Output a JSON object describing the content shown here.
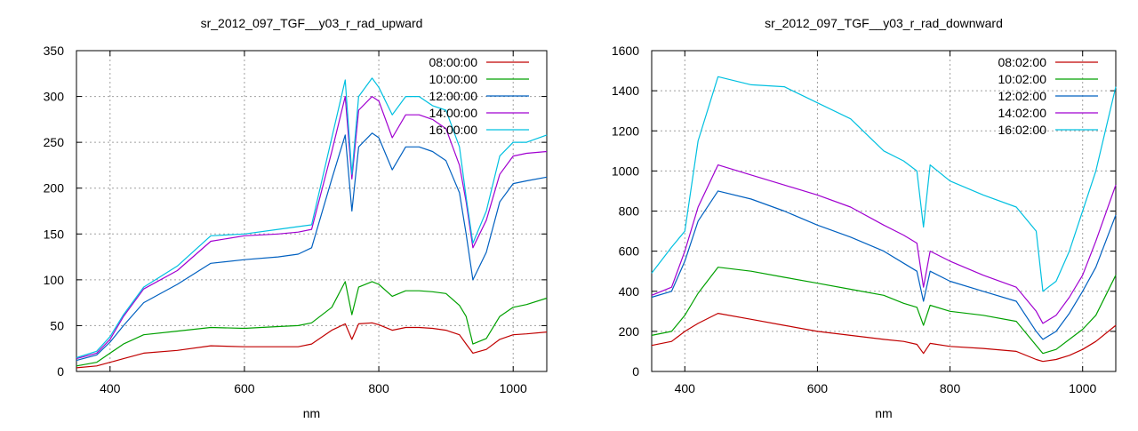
{
  "chart_data": [
    {
      "type": "line",
      "title": "sr_2012_097_TGF__y03_r_rad_upward",
      "xlabel": "nm",
      "ylabel": "",
      "xlim": [
        350,
        1050
      ],
      "ylim": [
        0,
        350
      ],
      "xticks": [
        400,
        600,
        800,
        1000
      ],
      "yticks": [
        0,
        50,
        100,
        150,
        200,
        250,
        300,
        350
      ],
      "grid": true,
      "legend_position": "top-right",
      "series": [
        {
          "name": "08:00:00",
          "color": "#c00000",
          "x": [
            350,
            380,
            400,
            420,
            450,
            500,
            550,
            600,
            650,
            680,
            700,
            730,
            750,
            760,
            770,
            790,
            800,
            820,
            840,
            860,
            880,
            900,
            920,
            930,
            940,
            960,
            980,
            1000,
            1020,
            1050
          ],
          "y": [
            4,
            6,
            10,
            14,
            20,
            23,
            28,
            27,
            27,
            27,
            30,
            45,
            52,
            35,
            52,
            53,
            51,
            45,
            48,
            48,
            47,
            45,
            40,
            30,
            20,
            24,
            35,
            40,
            41,
            43
          ]
        },
        {
          "name": "10:00:00",
          "color": "#00a000",
          "x": [
            350,
            380,
            400,
            420,
            450,
            500,
            550,
            600,
            650,
            680,
            700,
            730,
            750,
            760,
            770,
            790,
            800,
            820,
            840,
            860,
            880,
            900,
            920,
            930,
            940,
            960,
            980,
            1000,
            1020,
            1050
          ],
          "y": [
            6,
            10,
            20,
            30,
            40,
            44,
            48,
            47,
            49,
            50,
            53,
            70,
            98,
            62,
            92,
            98,
            95,
            82,
            88,
            88,
            87,
            85,
            72,
            60,
            30,
            36,
            60,
            70,
            73,
            80
          ]
        },
        {
          "name": "12:00:00",
          "color": "#0060c0",
          "x": [
            350,
            380,
            400,
            420,
            450,
            500,
            550,
            600,
            650,
            680,
            700,
            730,
            750,
            760,
            770,
            790,
            800,
            820,
            840,
            860,
            880,
            900,
            920,
            930,
            940,
            960,
            980,
            1000,
            1020,
            1050
          ],
          "y": [
            12,
            18,
            32,
            50,
            75,
            95,
            118,
            122,
            125,
            128,
            135,
            210,
            258,
            175,
            245,
            260,
            255,
            220,
            245,
            245,
            240,
            230,
            195,
            150,
            100,
            130,
            185,
            205,
            208,
            212
          ]
        },
        {
          "name": "14:00:00",
          "color": "#a000d0",
          "x": [
            350,
            380,
            400,
            420,
            450,
            500,
            550,
            600,
            650,
            680,
            700,
            730,
            750,
            760,
            770,
            790,
            800,
            820,
            840,
            860,
            880,
            900,
            920,
            930,
            940,
            960,
            980,
            1000,
            1020,
            1050
          ],
          "y": [
            14,
            20,
            35,
            60,
            90,
            110,
            142,
            148,
            150,
            152,
            155,
            240,
            300,
            210,
            285,
            300,
            295,
            255,
            280,
            280,
            275,
            265,
            225,
            185,
            135,
            165,
            215,
            235,
            238,
            240
          ]
        },
        {
          "name": "16:00:00",
          "color": "#00c0e0",
          "x": [
            350,
            380,
            400,
            420,
            450,
            500,
            550,
            600,
            650,
            680,
            700,
            730,
            750,
            760,
            770,
            790,
            800,
            820,
            840,
            860,
            880,
            900,
            920,
            930,
            940,
            960,
            980,
            1000,
            1020,
            1050
          ],
          "y": [
            15,
            22,
            38,
            62,
            92,
            115,
            148,
            150,
            155,
            158,
            160,
            255,
            318,
            215,
            300,
            320,
            310,
            280,
            300,
            300,
            290,
            285,
            245,
            190,
            140,
            175,
            235,
            250,
            250,
            258
          ]
        }
      ]
    },
    {
      "type": "line",
      "title": "sr_2012_097_TGF__y03_r_rad_downward",
      "xlabel": "nm",
      "ylabel": "",
      "xlim": [
        350,
        1050
      ],
      "ylim": [
        0,
        1600
      ],
      "xticks": [
        400,
        600,
        800,
        1000
      ],
      "yticks": [
        0,
        200,
        400,
        600,
        800,
        1000,
        1200,
        1400,
        1600
      ],
      "grid": true,
      "legend_position": "top-right",
      "series": [
        {
          "name": "08:02:00",
          "color": "#c00000",
          "x": [
            350,
            380,
            400,
            420,
            450,
            500,
            550,
            600,
            650,
            700,
            730,
            750,
            760,
            770,
            800,
            850,
            900,
            930,
            940,
            960,
            980,
            1000,
            1020,
            1050
          ],
          "y": [
            130,
            150,
            200,
            240,
            290,
            260,
            230,
            200,
            180,
            160,
            150,
            135,
            90,
            140,
            125,
            115,
            100,
            60,
            50,
            60,
            80,
            110,
            150,
            230
          ]
        },
        {
          "name": "10:02:00",
          "color": "#00a000",
          "x": [
            350,
            380,
            400,
            420,
            450,
            500,
            550,
            600,
            650,
            700,
            730,
            750,
            760,
            770,
            800,
            850,
            900,
            930,
            940,
            960,
            980,
            1000,
            1020,
            1050
          ],
          "y": [
            180,
            200,
            280,
            390,
            520,
            500,
            470,
            440,
            410,
            380,
            340,
            320,
            230,
            330,
            300,
            280,
            250,
            130,
            90,
            110,
            160,
            210,
            280,
            480
          ]
        },
        {
          "name": "12:02:00",
          "color": "#0060c0",
          "x": [
            350,
            380,
            400,
            420,
            450,
            500,
            550,
            600,
            650,
            700,
            730,
            750,
            760,
            770,
            800,
            850,
            900,
            930,
            940,
            960,
            980,
            1000,
            1020,
            1050
          ],
          "y": [
            370,
            400,
            550,
            750,
            900,
            860,
            800,
            730,
            670,
            600,
            540,
            500,
            350,
            500,
            450,
            400,
            350,
            200,
            160,
            200,
            290,
            400,
            520,
            780
          ]
        },
        {
          "name": "14:02:00",
          "color": "#a000d0",
          "x": [
            350,
            380,
            400,
            420,
            450,
            500,
            550,
            600,
            650,
            700,
            730,
            750,
            760,
            770,
            800,
            850,
            900,
            930,
            940,
            960,
            980,
            1000,
            1020,
            1050
          ],
          "y": [
            380,
            420,
            600,
            820,
            1030,
            980,
            930,
            880,
            820,
            730,
            680,
            640,
            420,
            600,
            550,
            480,
            420,
            300,
            240,
            280,
            370,
            480,
            650,
            930
          ]
        },
        {
          "name": "16:02:00",
          "color": "#00c0e0",
          "x": [
            350,
            380,
            400,
            420,
            450,
            500,
            550,
            600,
            650,
            700,
            730,
            750,
            760,
            770,
            800,
            850,
            900,
            930,
            940,
            960,
            980,
            1000,
            1020,
            1050
          ],
          "y": [
            490,
            620,
            700,
            1150,
            1470,
            1430,
            1420,
            1340,
            1260,
            1100,
            1050,
            1000,
            720,
            1030,
            950,
            880,
            820,
            700,
            400,
            450,
            600,
            800,
            1000,
            1420
          ]
        }
      ]
    }
  ]
}
